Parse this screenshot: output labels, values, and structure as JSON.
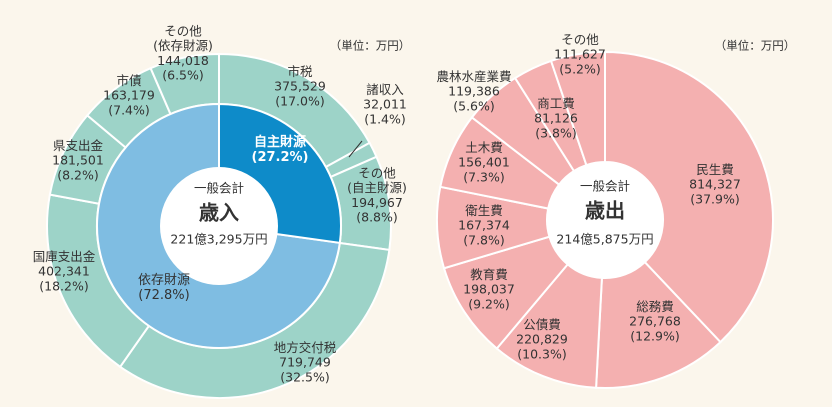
{
  "colors": {
    "background": "#fbf6ec",
    "revenue_outer": "#9dd3c8",
    "revenue_inner_dependent": "#7fbde2",
    "revenue_inner_own": "#0e8bc9",
    "expenditure": "#f4b0b0",
    "separator": "#ffffff",
    "text": "#333333",
    "text_inverse": "#ffffff"
  },
  "chart_data": [
    {
      "type": "pie",
      "chart": "revenue",
      "unit_note": "（単位：万円）",
      "center": {
        "line1": "一般会計",
        "line2": "歳入",
        "line3": "221億3,295万円"
      },
      "slices": [
        {
          "name": "市税",
          "value": "375,529",
          "amount": 375529,
          "percent": "(17.0%)"
        },
        {
          "name": "諸収入",
          "value": "32,011",
          "amount": 32011,
          "percent": "(1.4%)"
        },
        {
          "name": "その他\n(自主財源)",
          "value": "194,967",
          "amount": 194967,
          "percent": "(8.8%)"
        },
        {
          "name": "地方交付税",
          "value": "719,749",
          "amount": 719749,
          "percent": "(32.5%)"
        },
        {
          "name": "国庫支出金",
          "value": "402,341",
          "amount": 402341,
          "percent": "(18.2%)"
        },
        {
          "name": "県支出金",
          "value": "181,501",
          "amount": 181501,
          "percent": "(8.2%)"
        },
        {
          "name": "市債",
          "value": "163,179",
          "amount": 163179,
          "percent": "(7.4%)"
        },
        {
          "name": "その他\n(依存財源)",
          "value": "144,018",
          "amount": 144018,
          "percent": "(6.5%)"
        }
      ],
      "inner": [
        {
          "name": "自主財源",
          "percent": "(27.2%)",
          "share": 27.2
        },
        {
          "name": "依存財源",
          "percent": "(72.8%)",
          "share": 72.8
        }
      ]
    },
    {
      "type": "pie",
      "chart": "expenditure",
      "unit_note": "（単位：万円）",
      "center": {
        "line1": "一般会計",
        "line2": "歳出",
        "line3": "214億5,875万円"
      },
      "slices": [
        {
          "name": "民生費",
          "value": "814,327",
          "amount": 814327,
          "percent": "(37.9%)"
        },
        {
          "name": "総務費",
          "value": "276,768",
          "amount": 276768,
          "percent": "(12.9%)"
        },
        {
          "name": "公債費",
          "value": "220,829",
          "amount": 220829,
          "percent": "(10.3%)"
        },
        {
          "name": "教育費",
          "value": "198,037",
          "amount": 198037,
          "percent": "(9.2%)"
        },
        {
          "name": "衛生費",
          "value": "167,374",
          "amount": 167374,
          "percent": "(7.8%)"
        },
        {
          "name": "土木費",
          "value": "156,401",
          "amount": 156401,
          "percent": "(7.3%)"
        },
        {
          "name": "農林水産業費",
          "value": "119,386",
          "amount": 119386,
          "percent": "(5.6%)"
        },
        {
          "name": "商工費",
          "value": "81,126",
          "amount": 81126,
          "percent": "(3.8%)"
        },
        {
          "name": "その他",
          "value": "111,627",
          "amount": 111627,
          "percent": "(5.2%)"
        }
      ]
    }
  ]
}
